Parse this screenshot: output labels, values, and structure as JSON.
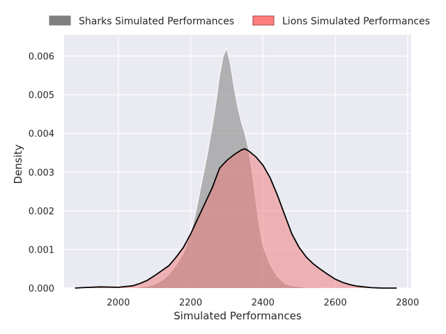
{
  "chart_data": {
    "type": "area",
    "xlabel": "Simulated Performances",
    "ylabel": "Density",
    "xlim": [
      1850,
      2810
    ],
    "ylim": [
      0,
      0.00655
    ],
    "x_ticks": [
      2000,
      2200,
      2400,
      2600,
      2800
    ],
    "y_ticks": [
      0.0,
      0.001,
      0.002,
      0.003,
      0.004,
      0.005,
      0.006
    ],
    "y_tick_labels": [
      "0.000",
      "0.001",
      "0.002",
      "0.003",
      "0.004",
      "0.005",
      "0.006"
    ],
    "grid": true,
    "background": "#eaeaf2",
    "legend_position": "top",
    "series": [
      {
        "name": "Sharks Simulated Performances",
        "fill_color": "#808080",
        "fill_opacity": 0.55,
        "edge_color": "#ffffff",
        "legend_color": "#808080",
        "x": [
          1900,
          1950,
          2000,
          2050,
          2080,
          2100,
          2120,
          2140,
          2160,
          2180,
          2200,
          2215,
          2230,
          2245,
          2260,
          2270,
          2280,
          2290,
          2300,
          2310,
          2320,
          2330,
          2340,
          2350,
          2360,
          2370,
          2380,
          2390,
          2400,
          2420,
          2440,
          2460,
          2480,
          2520,
          2560,
          2600
        ],
        "y": [
          0,
          0,
          0,
          1e-05,
          5e-05,
          0.0001,
          0.0002,
          0.00035,
          0.0006,
          0.0009,
          0.0014,
          0.002,
          0.0027,
          0.0034,
          0.0042,
          0.0048,
          0.0055,
          0.006,
          0.0062,
          0.0058,
          0.0052,
          0.0047,
          0.0043,
          0.004,
          0.0036,
          0.003,
          0.0023,
          0.0016,
          0.0011,
          0.0006,
          0.0003,
          0.00012,
          6e-05,
          2e-05,
          1e-05,
          0
        ]
      },
      {
        "name": "Lions Simulated Performances",
        "fill_color": "#f07878",
        "fill_opacity": 0.5,
        "edge_color": "#000000",
        "legend_color": "#ff7f7f",
        "x": [
          1880,
          1900,
          1950,
          2000,
          2040,
          2060,
          2080,
          2100,
          2120,
          2140,
          2160,
          2180,
          2200,
          2220,
          2240,
          2260,
          2280,
          2300,
          2320,
          2340,
          2350,
          2360,
          2380,
          2400,
          2420,
          2440,
          2460,
          2480,
          2500,
          2520,
          2540,
          2560,
          2580,
          2600,
          2620,
          2640,
          2660,
          2680,
          2700,
          2730,
          2770
        ],
        "y": [
          0,
          1e-05,
          3e-05,
          2e-05,
          6e-05,
          0.00012,
          0.0002,
          0.00032,
          0.00045,
          0.00058,
          0.0008,
          0.00105,
          0.0014,
          0.0018,
          0.0022,
          0.0026,
          0.0031,
          0.0033,
          0.00345,
          0.00357,
          0.0036,
          0.00355,
          0.0034,
          0.00318,
          0.00285,
          0.0024,
          0.0019,
          0.0014,
          0.00105,
          0.0008,
          0.00062,
          0.00048,
          0.00035,
          0.00023,
          0.00015,
          9e-05,
          5e-05,
          3e-05,
          1e-05,
          0,
          0
        ]
      }
    ]
  }
}
